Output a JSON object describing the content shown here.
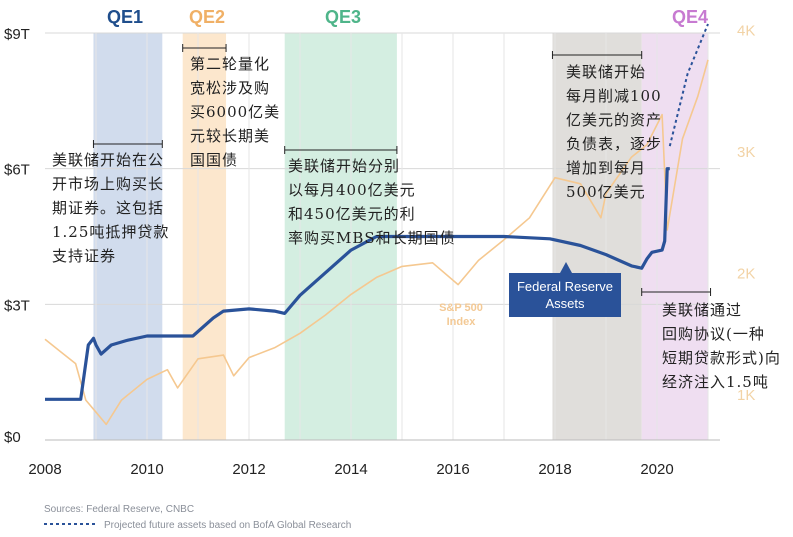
{
  "chart_data": {
    "type": "line",
    "x_ticks": [
      "2008",
      "2010",
      "2012",
      "2014",
      "2016",
      "2018",
      "2020"
    ],
    "y_left_ticks": [
      "$0",
      "$3T",
      "$6T",
      "$9T"
    ],
    "y_left_range": [
      0,
      9
    ],
    "y_right_ticks": [
      "1K",
      "2K",
      "3K",
      "4K"
    ],
    "y_right_range": [
      700,
      4000
    ],
    "x_range": [
      2008,
      2021.3
    ],
    "colors": {
      "fed": "#2a5299",
      "sp500": "#f5c890",
      "qe1": "#c9d6ea",
      "qe2": "#fbe3c4",
      "qe3": "#cdebdc",
      "taper": "#dbd8d5",
      "qe4": "#ecd8ef",
      "qe1_label": "#1f4e8c",
      "qe2_label": "#f0b066",
      "qe3_label": "#4fb58a",
      "qe4_label": "#c77ad1",
      "axis_text": "#222222",
      "right_tick": "#f2d3a6"
    },
    "bands": [
      {
        "label": "QE1",
        "start": 2008.95,
        "end": 2010.3,
        "fill": "qe1"
      },
      {
        "label": "QE2",
        "start": 2010.7,
        "end": 2011.55,
        "fill": "qe2"
      },
      {
        "label": "QE3",
        "start": 2012.7,
        "end": 2014.9,
        "fill": "qe3"
      },
      {
        "label": "",
        "start": 2017.95,
        "end": 2019.7,
        "fill": "taper"
      },
      {
        "label": "QE4",
        "start": 2019.7,
        "end": 2021.0,
        "fill": "qe4"
      }
    ],
    "series": [
      {
        "name": "Federal Reserve Assets",
        "axis": "left",
        "x": [
          2008.0,
          2008.6,
          2008.7,
          2008.85,
          2008.95,
          2009.0,
          2009.1,
          2009.3,
          2009.6,
          2010.0,
          2010.5,
          2010.9,
          2011.3,
          2011.5,
          2012.0,
          2012.5,
          2012.7,
          2013.0,
          2013.5,
          2014.0,
          2014.5,
          2014.9,
          2015.5,
          2016.0,
          2017.0,
          2017.9,
          2018.5,
          2019.0,
          2019.5,
          2019.7,
          2019.8,
          2019.9,
          2020.1,
          2020.15,
          2020.2,
          2020.25
        ],
        "y": [
          0.9,
          0.9,
          0.9,
          2.1,
          2.25,
          2.1,
          1.9,
          2.1,
          2.2,
          2.3,
          2.3,
          2.3,
          2.7,
          2.85,
          2.9,
          2.85,
          2.8,
          3.2,
          3.7,
          4.2,
          4.5,
          4.5,
          4.5,
          4.5,
          4.5,
          4.45,
          4.3,
          4.1,
          3.85,
          3.8,
          4.0,
          4.15,
          4.2,
          4.4,
          6.0,
          6.0
        ]
      },
      {
        "name": "Projected future assets",
        "axis": "left",
        "dashed": true,
        "x": [
          2020.25,
          2020.6,
          2021.0
        ],
        "y": [
          6.5,
          8.1,
          9.2
        ]
      },
      {
        "name": "S&P 500 Index",
        "axis": "right",
        "x": [
          2008.0,
          2008.3,
          2008.6,
          2008.8,
          2009.0,
          2009.2,
          2009.5,
          2010.0,
          2010.4,
          2010.6,
          2011.0,
          2011.5,
          2011.7,
          2012.0,
          2012.5,
          2013.0,
          2013.5,
          2014.0,
          2014.5,
          2015.0,
          2015.6,
          2016.1,
          2016.5,
          2017.0,
          2017.5,
          2018.0,
          2018.5,
          2018.9,
          2019.0,
          2019.5,
          2019.8,
          2020.1,
          2020.2,
          2020.5,
          2020.8,
          2021.0
        ],
        "y": [
          1450,
          1350,
          1250,
          950,
          850,
          750,
          950,
          1120,
          1200,
          1050,
          1290,
          1320,
          1150,
          1300,
          1380,
          1500,
          1650,
          1820,
          1960,
          2050,
          2080,
          1900,
          2100,
          2270,
          2450,
          2780,
          2730,
          2450,
          2650,
          2950,
          3050,
          3300,
          2350,
          3100,
          3450,
          3750
        ]
      }
    ]
  },
  "labels": {
    "qe1": "QE1",
    "qe2": "QE2",
    "qe3": "QE3",
    "qe4": "QE4",
    "fed_assets": [
      "Federal Reserve",
      "Assets"
    ],
    "sp500": [
      "S&P 500",
      "Index"
    ]
  },
  "annotations": {
    "qe1": [
      "美联储开始在公",
      "开市场上购买长",
      "期证券。这包括",
      "1.25吨抵押贷款",
      "支持证券"
    ],
    "qe2": [
      "第二轮量化",
      "宽松涉及购",
      "买6000亿美",
      "元较长期美",
      "国国债"
    ],
    "qe3": [
      "美联储开始分别",
      "以每月400亿美元",
      "和450亿美元的利",
      "率购买MBS和长期国债"
    ],
    "taper": [
      "美联储开始",
      "每月削减100",
      "亿美元的资产",
      "负债表，逐步",
      "增加到每月",
      "500亿美元"
    ],
    "qe4": [
      "美联储通过",
      "回购协议(一种",
      "短期贷款形式)向",
      "经济注入1.5吨"
    ]
  },
  "footer": {
    "sources": "Sources: Federal Reserve, CNBC",
    "projected": "Projected future assets based on BofA Global Research"
  }
}
